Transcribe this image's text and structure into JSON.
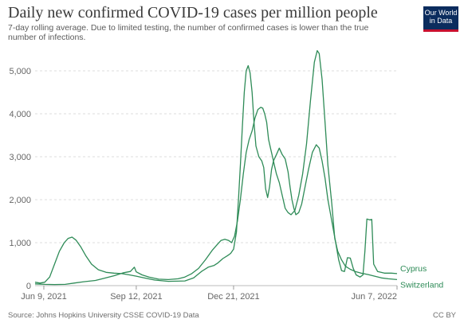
{
  "header": {
    "title": "Daily new confirmed COVID-19 cases per million people",
    "subtitle": "7-day rolling average. Due to limited testing, the number of confirmed cases is lower than the true number of infections.",
    "logo_line1": "Our World",
    "logo_line2": "in Data"
  },
  "footer": {
    "source": "Source: Johns Hopkins University CSSE COVID-19 Data",
    "license": "CC BY"
  },
  "colors": {
    "series": "#2e8b57",
    "grid": "#dddddd",
    "logo_bg": "#0b2c5e",
    "logo_accent": "#c8102e"
  },
  "chart_data": {
    "type": "line",
    "title": "Daily new confirmed COVID-19 cases per million people",
    "xlabel": "",
    "ylabel": "",
    "ylim": [
      0,
      5500
    ],
    "y_ticks": [
      0,
      1000,
      2000,
      3000,
      4000,
      5000
    ],
    "y_tick_labels": [
      "0",
      "1,000",
      "2,000",
      "3,000",
      "4,000",
      "5,000"
    ],
    "x_range": [
      "2021-05-31",
      "2022-06-07"
    ],
    "x_ticks": [
      "2021-06-09",
      "2021-09-12",
      "2021-12-21",
      "2022-06-07"
    ],
    "x_tick_labels": [
      "Jun 9, 2021",
      "Sep 12, 2021",
      "Dec 21, 2021",
      "Jun 7, 2022"
    ],
    "grid": "horizontal dashed",
    "legend": "end-of-line labels",
    "series": [
      {
        "name": "Cyprus",
        "color": "#2e8b57",
        "points": [
          [
            "2021-05-31",
            80
          ],
          [
            "2021-06-05",
            60
          ],
          [
            "2021-06-10",
            80
          ],
          [
            "2021-06-15",
            200
          ],
          [
            "2021-06-20",
            500
          ],
          [
            "2021-06-25",
            800
          ],
          [
            "2021-06-30",
            1000
          ],
          [
            "2021-07-04",
            1100
          ],
          [
            "2021-07-08",
            1130
          ],
          [
            "2021-07-12",
            1060
          ],
          [
            "2021-07-17",
            900
          ],
          [
            "2021-07-22",
            700
          ],
          [
            "2021-07-28",
            500
          ],
          [
            "2021-08-04",
            370
          ],
          [
            "2021-08-12",
            310
          ],
          [
            "2021-08-20",
            290
          ],
          [
            "2021-08-28",
            280
          ],
          [
            "2021-09-05",
            250
          ],
          [
            "2021-09-12",
            220
          ],
          [
            "2021-09-20",
            180
          ],
          [
            "2021-10-01",
            130
          ],
          [
            "2021-10-15",
            100
          ],
          [
            "2021-11-01",
            110
          ],
          [
            "2021-11-10",
            180
          ],
          [
            "2021-11-18",
            330
          ],
          [
            "2021-11-25",
            430
          ],
          [
            "2021-12-01",
            470
          ],
          [
            "2021-12-05",
            530
          ],
          [
            "2021-12-10",
            630
          ],
          [
            "2021-12-15",
            700
          ],
          [
            "2021-12-18",
            750
          ],
          [
            "2021-12-21",
            850
          ],
          [
            "2021-12-24",
            1250
          ],
          [
            "2021-12-26",
            2000
          ],
          [
            "2021-12-28",
            2800
          ],
          [
            "2021-12-30",
            3700
          ],
          [
            "2022-01-01",
            4500
          ],
          [
            "2022-01-03",
            5000
          ],
          [
            "2022-01-05",
            5120
          ],
          [
            "2022-01-07",
            4950
          ],
          [
            "2022-01-09",
            4500
          ],
          [
            "2022-01-11",
            3800
          ],
          [
            "2022-01-13",
            3250
          ],
          [
            "2022-01-16",
            3000
          ],
          [
            "2022-01-19",
            2900
          ],
          [
            "2022-01-21",
            2750
          ],
          [
            "2022-01-23",
            2250
          ],
          [
            "2022-01-25",
            2050
          ],
          [
            "2022-01-27",
            2300
          ],
          [
            "2022-01-29",
            2700
          ],
          [
            "2022-01-31",
            2900
          ],
          [
            "2022-02-03",
            3050
          ],
          [
            "2022-02-06",
            3200
          ],
          [
            "2022-02-09",
            3050
          ],
          [
            "2022-02-12",
            2950
          ],
          [
            "2022-02-15",
            2650
          ],
          [
            "2022-02-17",
            2300
          ],
          [
            "2022-02-19",
            2000
          ],
          [
            "2022-02-21",
            1800
          ],
          [
            "2022-02-23",
            1650
          ],
          [
            "2022-02-26",
            1700
          ],
          [
            "2022-03-01",
            1900
          ],
          [
            "2022-03-04",
            2250
          ],
          [
            "2022-03-08",
            2700
          ],
          [
            "2022-03-12",
            3100
          ],
          [
            "2022-03-16",
            3280
          ],
          [
            "2022-03-19",
            3200
          ],
          [
            "2022-03-22",
            2900
          ],
          [
            "2022-03-25",
            2500
          ],
          [
            "2022-03-28",
            2000
          ],
          [
            "2022-04-01",
            1500
          ],
          [
            "2022-04-05",
            1000
          ],
          [
            "2022-04-08",
            600
          ],
          [
            "2022-04-11",
            350
          ],
          [
            "2022-04-14",
            330
          ],
          [
            "2022-04-17",
            650
          ],
          [
            "2022-04-20",
            640
          ],
          [
            "2022-04-23",
            400
          ],
          [
            "2022-04-26",
            250
          ],
          [
            "2022-04-30",
            200
          ],
          [
            "2022-05-03",
            250
          ],
          [
            "2022-05-05",
            800
          ],
          [
            "2022-05-07",
            1550
          ],
          [
            "2022-05-10",
            1530
          ],
          [
            "2022-05-12",
            1540
          ],
          [
            "2022-05-14",
            500
          ],
          [
            "2022-05-18",
            330
          ],
          [
            "2022-05-25",
            290
          ],
          [
            "2022-06-01",
            290
          ],
          [
            "2022-06-07",
            280
          ]
        ]
      },
      {
        "name": "Switzerland",
        "color": "#2e8b57",
        "points": [
          [
            "2021-05-31",
            40
          ],
          [
            "2021-06-10",
            30
          ],
          [
            "2021-06-20",
            25
          ],
          [
            "2021-07-01",
            30
          ],
          [
            "2021-07-10",
            60
          ],
          [
            "2021-07-20",
            90
          ],
          [
            "2021-08-01",
            120
          ],
          [
            "2021-08-10",
            170
          ],
          [
            "2021-08-20",
            230
          ],
          [
            "2021-08-30",
            300
          ],
          [
            "2021-09-06",
            330
          ],
          [
            "2021-09-10",
            430
          ],
          [
            "2021-09-12",
            320
          ],
          [
            "2021-09-18",
            250
          ],
          [
            "2021-09-25",
            200
          ],
          [
            "2021-10-05",
            150
          ],
          [
            "2021-10-15",
            140
          ],
          [
            "2021-10-25",
            160
          ],
          [
            "2021-11-01",
            200
          ],
          [
            "2021-11-08",
            280
          ],
          [
            "2021-11-15",
            400
          ],
          [
            "2021-11-22",
            600
          ],
          [
            "2021-11-29",
            820
          ],
          [
            "2021-12-04",
            950
          ],
          [
            "2021-12-08",
            1050
          ],
          [
            "2021-12-12",
            1080
          ],
          [
            "2021-12-16",
            1050
          ],
          [
            "2021-12-19",
            1000
          ],
          [
            "2021-12-22",
            1150
          ],
          [
            "2021-12-25",
            1500
          ],
          [
            "2021-12-28",
            2000
          ],
          [
            "2021-12-31",
            2600
          ],
          [
            "2022-01-03",
            3100
          ],
          [
            "2022-01-06",
            3400
          ],
          [
            "2022-01-09",
            3600
          ],
          [
            "2022-01-12",
            3900
          ],
          [
            "2022-01-15",
            4100
          ],
          [
            "2022-01-18",
            4150
          ],
          [
            "2022-01-20",
            4130
          ],
          [
            "2022-01-22",
            4000
          ],
          [
            "2022-01-24",
            3800
          ],
          [
            "2022-01-26",
            3400
          ],
          [
            "2022-01-28",
            3200
          ],
          [
            "2022-01-30",
            3000
          ],
          [
            "2022-02-01",
            2800
          ],
          [
            "2022-02-03",
            2600
          ],
          [
            "2022-02-06",
            2400
          ],
          [
            "2022-02-09",
            2100
          ],
          [
            "2022-02-12",
            1800
          ],
          [
            "2022-02-15",
            1700
          ],
          [
            "2022-02-18",
            1650
          ],
          [
            "2022-02-22",
            1750
          ],
          [
            "2022-02-26",
            2100
          ],
          [
            "2022-03-02",
            2600
          ],
          [
            "2022-03-06",
            3300
          ],
          [
            "2022-03-10",
            4300
          ],
          [
            "2022-03-14",
            5200
          ],
          [
            "2022-03-17",
            5470
          ],
          [
            "2022-03-19",
            5400
          ],
          [
            "2022-03-22",
            4800
          ],
          [
            "2022-03-25",
            3800
          ],
          [
            "2022-03-28",
            2800
          ],
          [
            "2022-04-01",
            1900
          ],
          [
            "2022-04-04",
            1100
          ],
          [
            "2022-04-07",
            800
          ],
          [
            "2022-04-11",
            600
          ],
          [
            "2022-04-15",
            450
          ],
          [
            "2022-04-20",
            380
          ],
          [
            "2022-04-25",
            330
          ],
          [
            "2022-05-01",
            290
          ],
          [
            "2022-05-08",
            260
          ],
          [
            "2022-05-15",
            220
          ],
          [
            "2022-05-22",
            180
          ],
          [
            "2022-05-29",
            160
          ],
          [
            "2022-06-07",
            140
          ]
        ]
      }
    ]
  }
}
